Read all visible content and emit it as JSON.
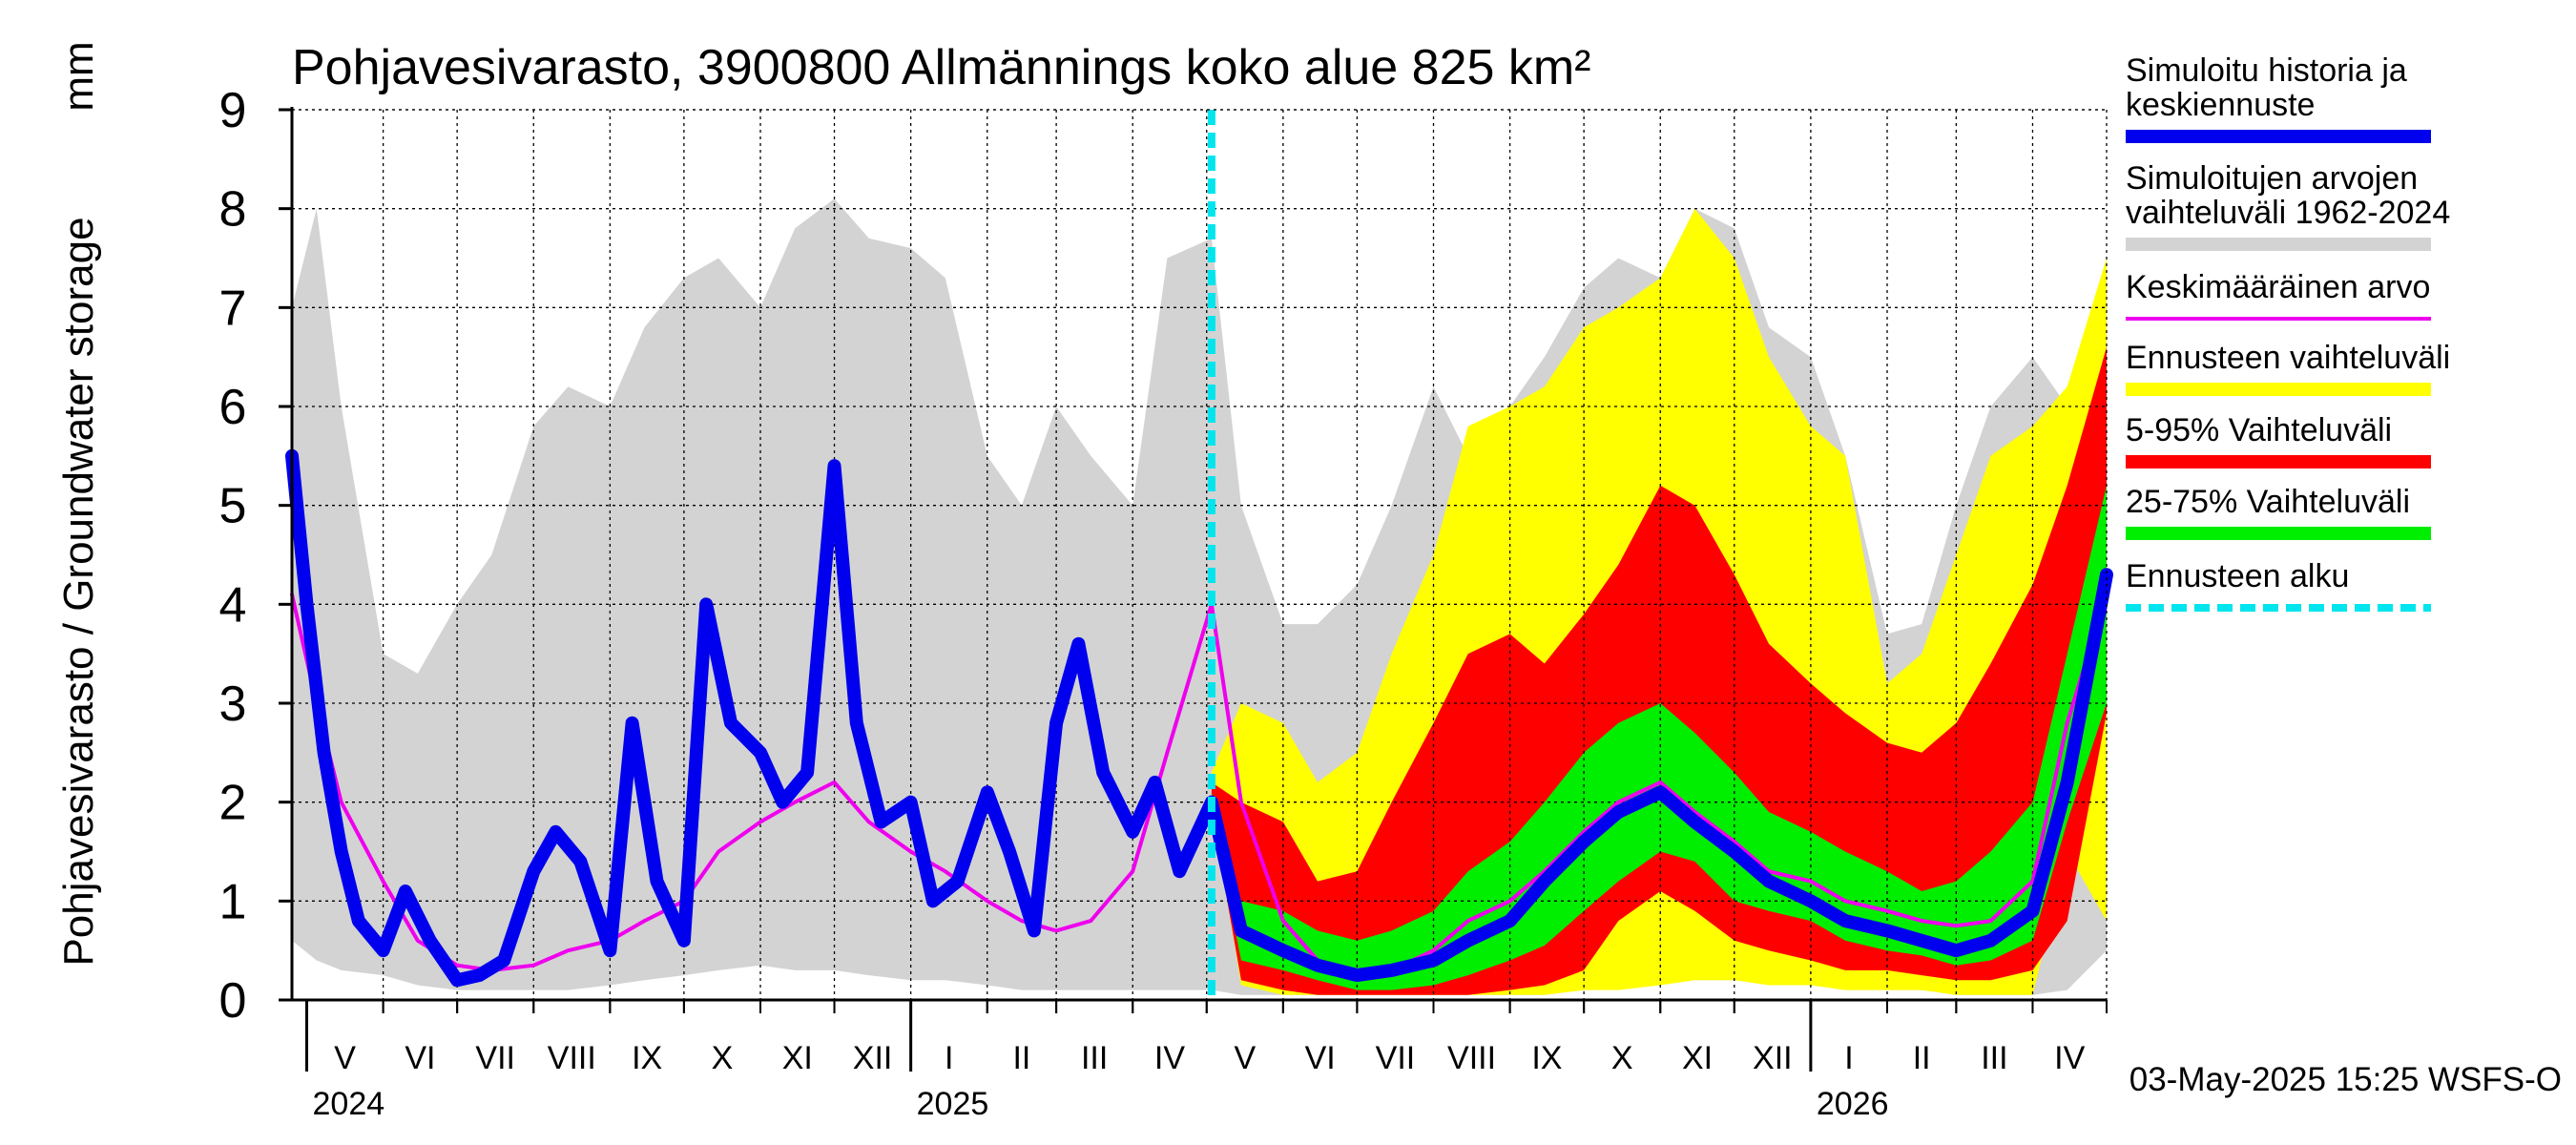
{
  "chart_data": {
    "type": "area",
    "title": "Pohjavesivarasto, 3900800 Allmännings koko alue 825 km²",
    "ylabel": "Pohjavesivarasto / Groundwater storage",
    "yunit": "mm",
    "ylim": [
      0,
      9
    ],
    "yticks": [
      "0",
      "1",
      "2",
      "3",
      "4",
      "5",
      "6",
      "7",
      "8",
      "9"
    ],
    "x_start": "2024-04-25",
    "x_end": "2026-05-01",
    "forecast_start": "2025-05-03",
    "month_labels": [
      {
        "label": "V",
        "start": "2024-05-01",
        "end": "2024-06-01"
      },
      {
        "label": "VI",
        "start": "2024-06-01",
        "end": "2024-07-01"
      },
      {
        "label": "VII",
        "start": "2024-07-01",
        "end": "2024-08-01"
      },
      {
        "label": "VIII",
        "start": "2024-08-01",
        "end": "2024-09-01"
      },
      {
        "label": "IX",
        "start": "2024-09-01",
        "end": "2024-10-01"
      },
      {
        "label": "X",
        "start": "2024-10-01",
        "end": "2024-11-01"
      },
      {
        "label": "XI",
        "start": "2024-11-01",
        "end": "2024-12-01"
      },
      {
        "label": "XII",
        "start": "2024-12-01",
        "end": "2025-01-01"
      },
      {
        "label": "I",
        "start": "2025-01-01",
        "end": "2025-02-01"
      },
      {
        "label": "II",
        "start": "2025-02-01",
        "end": "2025-03-01"
      },
      {
        "label": "III",
        "start": "2025-03-01",
        "end": "2025-04-01"
      },
      {
        "label": "IV",
        "start": "2025-04-01",
        "end": "2025-05-01"
      },
      {
        "label": "V",
        "start": "2025-05-01",
        "end": "2025-06-01"
      },
      {
        "label": "VI",
        "start": "2025-06-01",
        "end": "2025-07-01"
      },
      {
        "label": "VII",
        "start": "2025-07-01",
        "end": "2025-08-01"
      },
      {
        "label": "VIII",
        "start": "2025-08-01",
        "end": "2025-09-01"
      },
      {
        "label": "IX",
        "start": "2025-09-01",
        "end": "2025-10-01"
      },
      {
        "label": "X",
        "start": "2025-10-01",
        "end": "2025-11-01"
      },
      {
        "label": "XI",
        "start": "2025-11-01",
        "end": "2025-12-01"
      },
      {
        "label": "XII",
        "start": "2025-12-01",
        "end": "2026-01-01"
      },
      {
        "label": "I",
        "start": "2026-01-01",
        "end": "2026-02-01"
      },
      {
        "label": "II",
        "start": "2026-02-01",
        "end": "2026-03-01"
      },
      {
        "label": "III",
        "start": "2026-03-01",
        "end": "2026-04-01"
      },
      {
        "label": "IV",
        "start": "2026-04-01",
        "end": "2026-05-01"
      }
    ],
    "year_labels": [
      {
        "label": "2024",
        "date": "2024-05-01"
      },
      {
        "label": "2025",
        "date": "2025-01-01"
      },
      {
        "label": "2026",
        "date": "2026-01-01"
      }
    ],
    "grid": true,
    "legend_position": "right",
    "legend": [
      {
        "label": "Simuloitu historia ja keskiennuste",
        "lines": [
          "Simuloitu historia ja",
          "keskiennuste"
        ],
        "color": "#0000ee",
        "style": "thick"
      },
      {
        "label": "Simuloitujen arvojen vaihteluväli 1962-2024",
        "lines": [
          "Simuloitujen arvojen",
          "vaihteluväli 1962-2024"
        ],
        "color": "#d3d3d3",
        "style": "thick"
      },
      {
        "label": "Keskimääräinen arvo",
        "lines": [
          "Keskimääräinen arvo"
        ],
        "color": "#ee00ee",
        "style": "thin"
      },
      {
        "label": "Ennusteen vaihteluväli",
        "lines": [
          "Ennusteen vaihteluväli"
        ],
        "color": "#ffff00",
        "style": "thick"
      },
      {
        "label": "5-95% Vaihteluväli",
        "lines": [
          "5-95% Vaihteluväli"
        ],
        "color": "#ff0000",
        "style": "thick"
      },
      {
        "label": "25-75% Vaihteluväli",
        "lines": [
          "25-75% Vaihteluväli"
        ],
        "color": "#00ee00",
        "style": "thick"
      },
      {
        "label": "Ennusteen alku",
        "lines": [
          "Ennusteen alku"
        ],
        "color": "#00e5ee",
        "style": "dashed"
      }
    ],
    "series": [
      {
        "name": "Simuloitujen arvojen vaihteluväli 1962-2024",
        "kind": "band",
        "color": "#d3d3d3",
        "x": [
          "2024-04-25",
          "2024-05-05",
          "2024-05-15",
          "2024-06-01",
          "2024-06-15",
          "2024-07-01",
          "2024-07-15",
          "2024-08-01",
          "2024-08-15",
          "2024-09-01",
          "2024-09-15",
          "2024-10-01",
          "2024-10-15",
          "2024-11-01",
          "2024-11-15",
          "2024-12-01",
          "2024-12-15",
          "2025-01-01",
          "2025-01-15",
          "2025-02-01",
          "2025-02-15",
          "2025-03-01",
          "2025-03-15",
          "2025-04-01",
          "2025-04-15",
          "2025-05-03",
          "2025-05-15",
          "2025-06-01",
          "2025-06-15",
          "2025-07-01",
          "2025-07-15",
          "2025-08-01",
          "2025-08-15",
          "2025-09-01",
          "2025-09-15",
          "2025-10-01",
          "2025-10-15",
          "2025-11-01",
          "2025-11-15",
          "2025-12-01",
          "2025-12-15",
          "2026-01-01",
          "2026-01-15",
          "2026-02-01",
          "2026-02-15",
          "2026-03-01",
          "2026-03-15",
          "2026-04-01",
          "2026-04-15",
          "2026-05-01"
        ],
        "low": [
          0.6,
          0.4,
          0.3,
          0.25,
          0.15,
          0.1,
          0.1,
          0.1,
          0.1,
          0.15,
          0.2,
          0.25,
          0.3,
          0.35,
          0.3,
          0.3,
          0.25,
          0.2,
          0.2,
          0.15,
          0.1,
          0.1,
          0.1,
          0.1,
          0.1,
          0.1,
          0.05,
          0.05,
          0.05,
          0.05,
          0.05,
          0.05,
          0.05,
          0.05,
          0.05,
          0.1,
          0.15,
          0.2,
          0.2,
          0.2,
          0.2,
          0.15,
          0.1,
          0.1,
          0.1,
          0.05,
          0.05,
          0.05,
          0.1,
          0.5
        ],
        "high": [
          7.0,
          8.0,
          6.0,
          3.5,
          3.3,
          4.0,
          4.5,
          5.8,
          6.2,
          6.0,
          6.8,
          7.3,
          7.5,
          7.0,
          7.8,
          8.1,
          7.7,
          7.6,
          7.3,
          5.5,
          5.0,
          6.0,
          5.5,
          5.0,
          7.5,
          7.7,
          5.0,
          3.8,
          3.8,
          4.2,
          5.0,
          6.2,
          5.5,
          6.0,
          6.5,
          7.2,
          7.5,
          7.3,
          8.0,
          7.8,
          6.8,
          6.5,
          5.5,
          3.7,
          3.8,
          5.0,
          6.0,
          6.5,
          6.0,
          7.2
        ]
      },
      {
        "name": "Ennusteen vaihteluväli",
        "kind": "band",
        "color": "#ffff00",
        "x": [
          "2025-05-03",
          "2025-05-15",
          "2025-06-01",
          "2025-06-15",
          "2025-07-01",
          "2025-07-15",
          "2025-08-01",
          "2025-08-15",
          "2025-09-01",
          "2025-09-15",
          "2025-10-01",
          "2025-10-15",
          "2025-11-01",
          "2025-11-15",
          "2025-12-01",
          "2025-12-15",
          "2026-01-01",
          "2026-01-15",
          "2026-02-01",
          "2026-02-15",
          "2026-03-01",
          "2026-03-15",
          "2026-04-01",
          "2026-04-15",
          "2026-05-01"
        ],
        "low": [
          2.0,
          0.15,
          0.05,
          0.05,
          0.05,
          0.05,
          0.05,
          0.05,
          0.05,
          0.05,
          0.1,
          0.1,
          0.15,
          0.2,
          0.2,
          0.15,
          0.15,
          0.1,
          0.1,
          0.1,
          0.05,
          0.05,
          0.05,
          1.5,
          0.8
        ],
        "high": [
          2.3,
          3.0,
          2.8,
          2.2,
          2.5,
          3.5,
          4.5,
          5.8,
          6.0,
          6.2,
          6.8,
          7.0,
          7.3,
          8.0,
          7.5,
          6.5,
          5.8,
          5.5,
          3.2,
          3.5,
          4.5,
          5.5,
          5.8,
          6.2,
          7.5
        ]
      },
      {
        "name": "5-95% Vaihteluväli",
        "kind": "band",
        "color": "#ff0000",
        "x": [
          "2025-05-03",
          "2025-05-15",
          "2025-06-01",
          "2025-06-15",
          "2025-07-01",
          "2025-07-15",
          "2025-08-01",
          "2025-08-15",
          "2025-09-01",
          "2025-09-15",
          "2025-10-01",
          "2025-10-15",
          "2025-11-01",
          "2025-11-15",
          "2025-12-01",
          "2025-12-15",
          "2026-01-01",
          "2026-01-15",
          "2026-02-01",
          "2026-02-15",
          "2026-03-01",
          "2026-03-15",
          "2026-04-01",
          "2026-04-15",
          "2026-05-01"
        ],
        "low": [
          1.9,
          0.2,
          0.1,
          0.05,
          0.05,
          0.05,
          0.05,
          0.05,
          0.1,
          0.15,
          0.3,
          0.8,
          1.1,
          0.9,
          0.6,
          0.5,
          0.4,
          0.3,
          0.3,
          0.25,
          0.2,
          0.2,
          0.3,
          0.8,
          2.9
        ],
        "high": [
          2.2,
          2.0,
          1.8,
          1.2,
          1.3,
          2.0,
          2.8,
          3.5,
          3.7,
          3.4,
          3.9,
          4.4,
          5.2,
          5.0,
          4.3,
          3.6,
          3.2,
          2.9,
          2.6,
          2.5,
          2.8,
          3.4,
          4.2,
          5.2,
          6.6
        ]
      },
      {
        "name": "25-75% Vaihteluväli",
        "kind": "band",
        "color": "#00ee00",
        "x": [
          "2025-05-03",
          "2025-05-15",
          "2025-06-01",
          "2025-06-15",
          "2025-07-01",
          "2025-07-15",
          "2025-08-01",
          "2025-08-15",
          "2025-09-01",
          "2025-09-15",
          "2025-10-01",
          "2025-10-15",
          "2025-11-01",
          "2025-11-15",
          "2025-12-01",
          "2025-12-15",
          "2026-01-01",
          "2026-01-15",
          "2026-02-01",
          "2026-02-15",
          "2026-03-01",
          "2026-03-15",
          "2026-04-01",
          "2026-04-15",
          "2026-05-01"
        ],
        "low": [
          1.9,
          0.4,
          0.3,
          0.2,
          0.1,
          0.1,
          0.15,
          0.25,
          0.4,
          0.55,
          0.9,
          1.2,
          1.5,
          1.4,
          1.0,
          0.9,
          0.8,
          0.6,
          0.5,
          0.45,
          0.35,
          0.4,
          0.6,
          1.8,
          3.0
        ],
        "high": [
          2.1,
          1.0,
          0.9,
          0.7,
          0.6,
          0.7,
          0.9,
          1.3,
          1.6,
          2.0,
          2.5,
          2.8,
          3.0,
          2.7,
          2.3,
          1.9,
          1.7,
          1.5,
          1.3,
          1.1,
          1.2,
          1.5,
          2.0,
          3.5,
          5.2
        ]
      },
      {
        "name": "Keskimääräinen arvo",
        "kind": "line",
        "color": "#ee00ee",
        "x": [
          "2024-04-25",
          "2024-05-05",
          "2024-05-15",
          "2024-06-01",
          "2024-06-15",
          "2024-07-01",
          "2024-07-15",
          "2024-08-01",
          "2024-08-15",
          "2024-09-01",
          "2024-09-15",
          "2024-10-01",
          "2024-10-15",
          "2024-11-01",
          "2024-11-15",
          "2024-12-01",
          "2024-12-15",
          "2025-01-01",
          "2025-01-15",
          "2025-02-01",
          "2025-02-15",
          "2025-03-01",
          "2025-03-15",
          "2025-04-01",
          "2025-04-15",
          "2025-05-03",
          "2025-05-15",
          "2025-06-01",
          "2025-06-15",
          "2025-07-01",
          "2025-07-15",
          "2025-08-01",
          "2025-08-15",
          "2025-09-01",
          "2025-09-15",
          "2025-10-01",
          "2025-10-15",
          "2025-11-01",
          "2025-11-15",
          "2025-12-01",
          "2025-12-15",
          "2026-01-01",
          "2026-01-15",
          "2026-02-01",
          "2026-02-15",
          "2026-03-01",
          "2026-03-15",
          "2026-04-01",
          "2026-04-15",
          "2026-05-01"
        ],
        "y": [
          4.1,
          3.0,
          2.0,
          1.2,
          0.6,
          0.35,
          0.3,
          0.35,
          0.5,
          0.6,
          0.8,
          1.0,
          1.5,
          1.8,
          2.0,
          2.2,
          1.8,
          1.5,
          1.3,
          1.0,
          0.8,
          0.7,
          0.8,
          1.3,
          2.5,
          4.0,
          2.0,
          0.8,
          0.4,
          0.25,
          0.3,
          0.5,
          0.8,
          1.0,
          1.3,
          1.7,
          2.0,
          2.2,
          1.9,
          1.6,
          1.3,
          1.2,
          1.0,
          0.9,
          0.8,
          0.75,
          0.8,
          1.2,
          2.8,
          4.1
        ]
      },
      {
        "name": "Simuloitu historia ja keskiennuste",
        "kind": "line",
        "color": "#0000ee",
        "x": [
          "2024-04-25",
          "2024-05-01",
          "2024-05-08",
          "2024-05-15",
          "2024-05-22",
          "2024-06-01",
          "2024-06-10",
          "2024-06-20",
          "2024-07-01",
          "2024-07-10",
          "2024-07-20",
          "2024-08-01",
          "2024-08-10",
          "2024-08-20",
          "2024-09-01",
          "2024-09-10",
          "2024-09-20",
          "2024-10-01",
          "2024-10-10",
          "2024-10-20",
          "2024-11-01",
          "2024-11-10",
          "2024-11-20",
          "2024-12-01",
          "2024-12-10",
          "2024-12-20",
          "2025-01-01",
          "2025-01-10",
          "2025-01-20",
          "2025-02-01",
          "2025-02-10",
          "2025-02-20",
          "2025-03-01",
          "2025-03-10",
          "2025-03-20",
          "2025-04-01",
          "2025-04-10",
          "2025-04-20",
          "2025-05-03",
          "2025-05-15",
          "2025-06-01",
          "2025-06-15",
          "2025-07-01",
          "2025-07-15",
          "2025-08-01",
          "2025-08-15",
          "2025-09-01",
          "2025-09-15",
          "2025-10-01",
          "2025-10-15",
          "2025-11-01",
          "2025-11-15",
          "2025-12-01",
          "2025-12-15",
          "2026-01-01",
          "2026-01-15",
          "2026-02-01",
          "2026-02-15",
          "2026-03-01",
          "2026-03-15",
          "2026-04-01",
          "2026-04-15",
          "2026-05-01"
        ],
        "y": [
          5.5,
          4.0,
          2.5,
          1.5,
          0.8,
          0.5,
          1.1,
          0.6,
          0.2,
          0.25,
          0.4,
          1.3,
          1.7,
          1.4,
          0.5,
          2.8,
          1.2,
          0.6,
          4.0,
          2.8,
          2.5,
          2.0,
          2.3,
          5.4,
          2.8,
          1.8,
          2.0,
          1.0,
          1.2,
          2.1,
          1.5,
          0.7,
          2.8,
          3.6,
          2.3,
          1.7,
          2.2,
          1.3,
          2.0,
          0.7,
          0.5,
          0.35,
          0.25,
          0.3,
          0.4,
          0.6,
          0.8,
          1.2,
          1.6,
          1.9,
          2.1,
          1.8,
          1.5,
          1.2,
          1.0,
          0.8,
          0.7,
          0.6,
          0.5,
          0.6,
          0.9,
          2.2,
          4.3
        ]
      }
    ]
  },
  "footer": {
    "timestamp": "03-May-2025 15:25 WSFS-O"
  }
}
